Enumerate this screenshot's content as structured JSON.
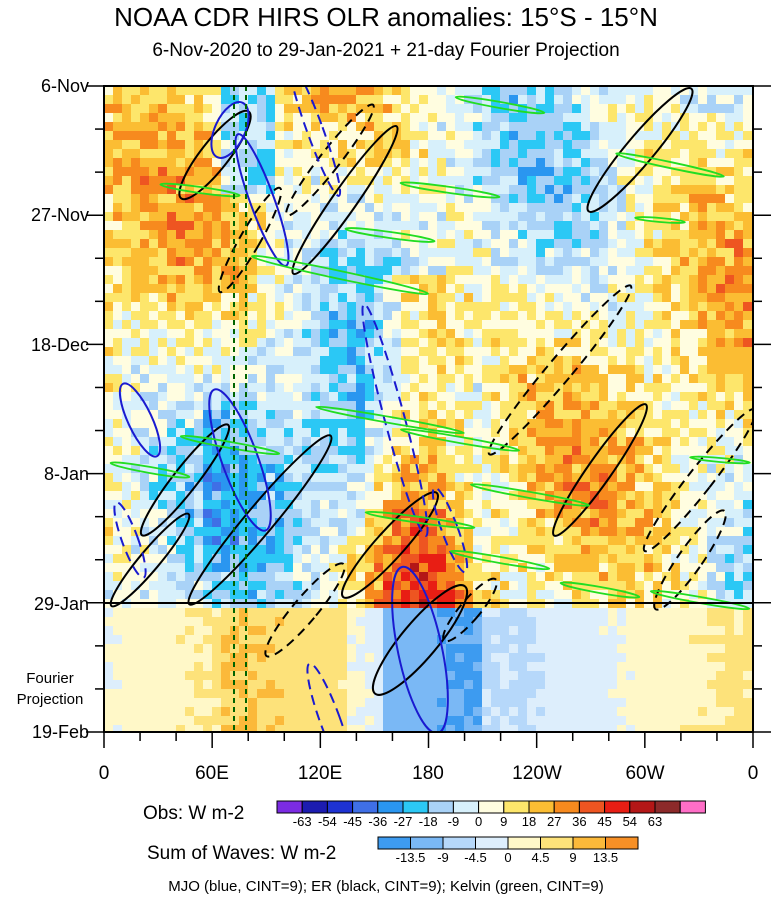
{
  "chart_data": {
    "type": "heatmap",
    "title": "NOAA CDR HIRS OLR anomalies: 15°S - 15°N",
    "subtitle": "6-Nov-2020 to 29-Jan-2021 + 21-day Fourier Projection",
    "y_tick_labels": [
      "6-Nov",
      "27-Nov",
      "18-Dec",
      "8-Jan",
      "29-Jan",
      "19-Feb"
    ],
    "x_tick_labels": [
      "0",
      "60E",
      "120E",
      "180",
      "120W",
      "60W",
      "0"
    ],
    "x_range_deg_east": [
      0,
      360
    ],
    "projection_label_lines": [
      "Fourier",
      "Projection"
    ],
    "obs_colorbar": {
      "label": "Obs: W m-2",
      "ticks": [
        "-63",
        "-54",
        "-45",
        "-36",
        "-27",
        "-18",
        "-9",
        "0",
        "9",
        "18",
        "27",
        "36",
        "45",
        "54",
        "63"
      ],
      "colors": [
        "#7b2be2",
        "#1c1cb0",
        "#1e32d2",
        "#3f6fe6",
        "#2a96f0",
        "#2bc8f5",
        "#a9d2f7",
        "#d7f0fb",
        "#fffde0",
        "#fde66b",
        "#fbbd33",
        "#f78a1e",
        "#ee5521",
        "#e81e14",
        "#b41717",
        "#8c2a2a",
        "#ff6ec7"
      ]
    },
    "waves_colorbar": {
      "label": "Sum of Waves: W m-2",
      "ticks": [
        "-13.5",
        "-9",
        "-4.5",
        "0",
        "4.5",
        "9",
        "13.5"
      ],
      "colors": [
        "#3d9bf0",
        "#7ab8f5",
        "#b6d8fa",
        "#ddeefc",
        "#fff8c8",
        "#fde27a",
        "#fbb93a",
        "#f79026"
      ]
    },
    "legend_text": "MJO (blue, CINT=9); ER (black, CINT=9); Kelvin (green, CINT=9)",
    "colors": {
      "mjo": "#1a1ad0",
      "er": "#000000",
      "kelvin": "#22dd22",
      "reference_lines": "#006400"
    }
  }
}
